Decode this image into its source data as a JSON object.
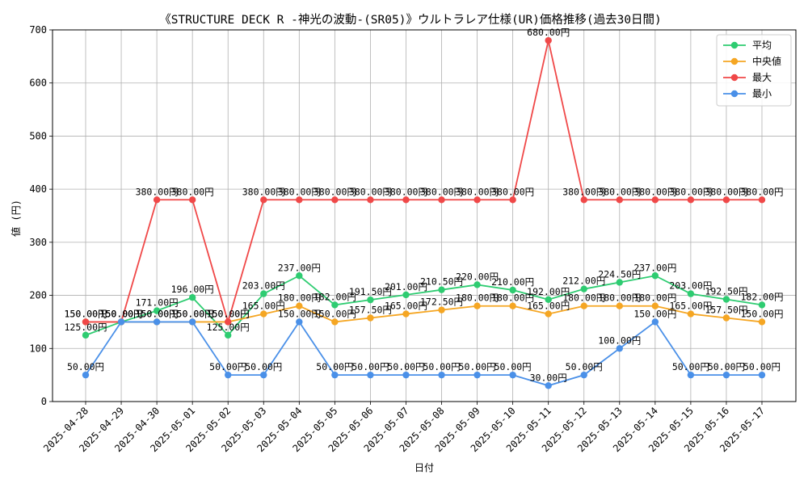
{
  "chart_data": {
    "type": "line",
    "title": "《STRUCTURE DECK R -神光の波動-(SR05)》ウルトラレア仕様(UR)価格推移(過去30日間)",
    "xlabel": "日付",
    "ylabel": "値 (円)",
    "ylim": [
      0,
      700
    ],
    "yticks": [
      0,
      100,
      200,
      300,
      400,
      500,
      600,
      700
    ],
    "grid": true,
    "legend_position": "top-right",
    "label_suffix": "円",
    "categories": [
      "2025-04-28",
      "2025-04-29",
      "2025-04-30",
      "2025-05-01",
      "2025-05-02",
      "2025-05-03",
      "2025-05-04",
      "2025-05-05",
      "2025-05-06",
      "2025-05-07",
      "2025-05-08",
      "2025-05-09",
      "2025-05-10",
      "2025-05-11",
      "2025-05-12",
      "2025-05-13",
      "2025-05-14",
      "2025-05-15",
      "2025-05-16",
      "2025-05-17"
    ],
    "series": [
      {
        "name": "平均",
        "color": "#2ecc71",
        "values": [
          125,
          150,
          171,
          196,
          125,
          203,
          237,
          182,
          191.5,
          201,
          210.5,
          220,
          210,
          192,
          212,
          224.5,
          237,
          203,
          192.5,
          182
        ]
      },
      {
        "name": "中央値",
        "color": "#f5a623",
        "values": [
          150,
          150,
          150,
          150,
          150,
          165,
          180,
          150,
          157.5,
          165,
          172.5,
          180,
          180,
          165,
          180,
          180,
          180,
          165,
          157.5,
          150
        ]
      },
      {
        "name": "最大",
        "color": "#f04848",
        "values": [
          150,
          150,
          380,
          380,
          150,
          380,
          380,
          380,
          380,
          380,
          380,
          380,
          380,
          680,
          380,
          380,
          380,
          380,
          380,
          380
        ]
      },
      {
        "name": "最小",
        "color": "#4a90e8",
        "values": [
          50,
          150,
          150,
          150,
          50,
          50,
          150,
          50,
          50,
          50,
          50,
          50,
          50,
          30,
          50,
          100,
          150,
          50,
          50,
          50
        ]
      }
    ]
  }
}
